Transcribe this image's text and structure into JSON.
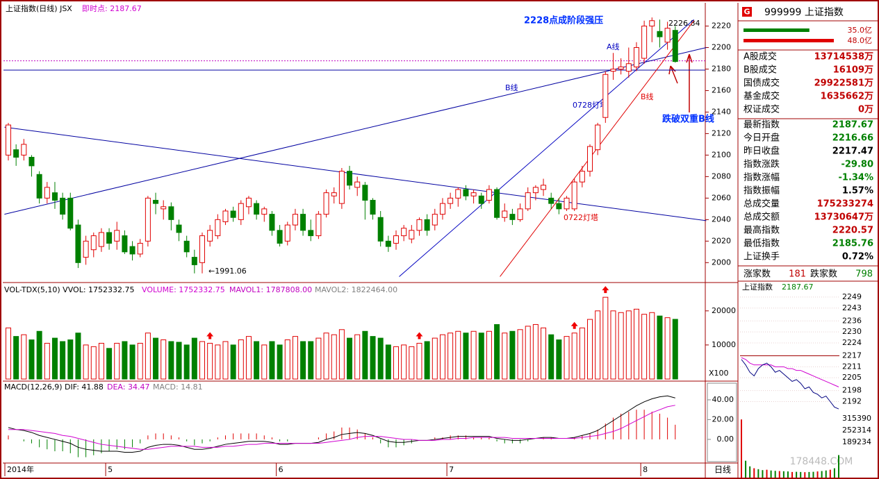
{
  "chart_data": {
    "type": "candlestick",
    "title": "上证指数(日线) JSX",
    "instant": "即时点: 2187.67",
    "ylim": [
      1986,
      2241
    ],
    "yticks": [
      2000,
      2020,
      2040,
      2060,
      2080,
      2100,
      2120,
      2140,
      2160,
      2180,
      2200,
      2220
    ],
    "xlabels": [
      {
        "index": 0,
        "label": "2014年"
      },
      {
        "index": 13,
        "label": "5"
      },
      {
        "index": 35,
        "label": "6"
      },
      {
        "index": 57,
        "label": "7"
      },
      {
        "index": 82,
        "label": "8"
      }
    ],
    "ohlc": [
      [
        2100,
        2128,
        2130,
        2095
      ],
      [
        2105,
        2098,
        2110,
        2090
      ],
      [
        2100,
        2110,
        2115,
        2095
      ],
      [
        2098,
        2090,
        2100,
        2080
      ],
      [
        2082,
        2060,
        2085,
        2055
      ],
      [
        2060,
        2070,
        2075,
        2055
      ],
      [
        2065,
        2058,
        2075,
        2050
      ],
      [
        2060,
        2045,
        2065,
        2040
      ],
      [
        2060,
        2032,
        2065,
        2030
      ],
      [
        2035,
        2000,
        2040,
        1995
      ],
      [
        2005,
        2020,
        2025,
        1998
      ],
      [
        2012,
        2025,
        2028,
        2005
      ],
      [
        2015,
        2028,
        2032,
        2010
      ],
      [
        2028,
        2018,
        2032,
        2012
      ],
      [
        2020,
        2030,
        2038,
        2012
      ],
      [
        2025,
        2010,
        2030,
        2008
      ],
      [
        2015,
        2008,
        2020,
        2002
      ],
      [
        2008,
        2018,
        2022,
        2005
      ],
      [
        2020,
        2060,
        2062,
        2015
      ],
      [
        2058,
        2055,
        2065,
        2045
      ],
      [
        2050,
        2052,
        2058,
        2040
      ],
      [
        2052,
        2040,
        2056,
        2030
      ],
      [
        2035,
        2028,
        2040,
        2020
      ],
      [
        2020,
        2010,
        2025,
        2005
      ],
      [
        2005,
        1998,
        2012,
        1990
      ],
      [
        2000,
        2025,
        2028,
        1990
      ],
      [
        2020,
        2030,
        2035,
        2015
      ],
      [
        2025,
        2040,
        2045,
        2022
      ],
      [
        2038,
        2048,
        2050,
        2035
      ],
      [
        2048,
        2042,
        2052,
        2038
      ],
      [
        2040,
        2055,
        2058,
        2035
      ],
      [
        2052,
        2060,
        2062,
        2045
      ],
      [
        2055,
        2045,
        2058,
        2040
      ],
      [
        2045,
        2050,
        2052,
        2038
      ],
      [
        2045,
        2030,
        2048,
        2025
      ],
      [
        2030,
        2018,
        2035,
        2015
      ],
      [
        2020,
        2035,
        2038,
        2016
      ],
      [
        2035,
        2045,
        2050,
        2030
      ],
      [
        2045,
        2030,
        2050,
        2025
      ],
      [
        2030,
        2025,
        2040,
        2020
      ],
      [
        2025,
        2045,
        2048,
        2022
      ],
      [
        2045,
        2065,
        2068,
        2042
      ],
      [
        2062,
        2065,
        2070,
        2055
      ],
      [
        2055,
        2085,
        2088,
        2050
      ],
      [
        2085,
        2072,
        2090,
        2068
      ],
      [
        2070,
        2075,
        2080,
        2062
      ],
      [
        2072,
        2058,
        2075,
        2040
      ],
      [
        2058,
        2045,
        2060,
        2040
      ],
      [
        2042,
        2020,
        2048,
        2015
      ],
      [
        2020,
        2015,
        2025,
        2010
      ],
      [
        2018,
        2025,
        2030,
        2012
      ],
      [
        2025,
        2032,
        2035,
        2020
      ],
      [
        2022,
        2030,
        2035,
        2018
      ],
      [
        2030,
        2040,
        2042,
        2025
      ],
      [
        2040,
        2030,
        2045,
        2025
      ],
      [
        2035,
        2045,
        2050,
        2030
      ],
      [
        2045,
        2055,
        2060,
        2040
      ],
      [
        2055,
        2060,
        2065,
        2050
      ],
      [
        2060,
        2068,
        2070,
        2052
      ],
      [
        2068,
        2062,
        2072,
        2058
      ],
      [
        2062,
        2065,
        2068,
        2055
      ],
      [
        2062,
        2055,
        2065,
        2050
      ],
      [
        2058,
        2068,
        2072,
        2055
      ],
      [
        2068,
        2042,
        2070,
        2040
      ],
      [
        2042,
        2048,
        2055,
        2038
      ],
      [
        2045,
        2040,
        2050,
        2035
      ],
      [
        2040,
        2050,
        2055,
        2038
      ],
      [
        2050,
        2065,
        2070,
        2048
      ],
      [
        2065,
        2070,
        2072,
        2058
      ],
      [
        2068,
        2072,
        2078,
        2062
      ],
      [
        2060,
        2055,
        2065,
        2050
      ],
      [
        2055,
        2050,
        2060,
        2045
      ],
      [
        2050,
        2060,
        2062,
        2048
      ],
      [
        2050,
        2075,
        2078,
        2048
      ],
      [
        2075,
        2085,
        2090,
        2070
      ],
      [
        2085,
        2108,
        2110,
        2080
      ],
      [
        2105,
        2128,
        2130,
        2100
      ],
      [
        2135,
        2175,
        2178,
        2130
      ],
      [
        2178,
        2180,
        2195,
        2170
      ],
      [
        2180,
        2182,
        2190,
        2175
      ],
      [
        2178,
        2185,
        2200,
        2172
      ],
      [
        2182,
        2200,
        2205,
        2178
      ],
      [
        2190,
        2220,
        2225,
        2185
      ],
      [
        2220,
        2225,
        2228,
        2205
      ],
      [
        2215,
        2210,
        2226,
        2200
      ],
      [
        2205,
        2218,
        2224,
        2198
      ],
      [
        2216,
        2187,
        2220,
        2186
      ]
    ],
    "lines": [
      {
        "from": [
          -0.5,
          2126
        ],
        "to": [
          90,
          2039
        ],
        "color": "#0000a0"
      },
      {
        "from": [
          -0.5,
          2045
        ],
        "to": [
          90,
          2200
        ],
        "color": "#0000a0"
      },
      {
        "from": [
          50.4,
          1987
        ],
        "to": [
          88.4,
          2226
        ],
        "color": "#0000c0"
      },
      {
        "from": [
          63.4,
          1987
        ],
        "to": [
          88.4,
          2225
        ],
        "color": "#e00000"
      }
    ],
    "hline": 2179,
    "instant_value": 2187.67,
    "annotations": {
      "pressure": "2228点成阶段强压",
      "a_line": "A线",
      "b_line_blue": "B线",
      "b_line_red": "B线",
      "tower1": "0728灯塔",
      "tower2": "0722灯塔",
      "break": "跌破双重B线",
      "high": "2226.84",
      "low": "←1991.06"
    },
    "volume": {
      "header": "VOL-TDX(5,10) VVOL: 1752332.75",
      "vol": "VOLUME: 1752332.75",
      "mavol1": "MAVOL1: 1787808.00",
      "mavol2": "MAVOL2: 1822464.00",
      "unit": "X100",
      "ylim": [
        0,
        27700
      ],
      "yticks": [
        10000,
        20000
      ],
      "values": [
        15000,
        12500,
        13000,
        11500,
        14000,
        10500,
        12000,
        11000,
        11500,
        13500,
        10000,
        9500,
        10500,
        9000,
        10500,
        11000,
        10000,
        10500,
        13500,
        12000,
        11500,
        11000,
        10800,
        10000,
        12000,
        11000,
        10500,
        10000,
        11000,
        10000,
        11500,
        12500,
        11000,
        10000,
        11000,
        10000,
        11500,
        12500,
        11000,
        11000,
        12000,
        13500,
        13000,
        14500,
        12000,
        13000,
        14000,
        12500,
        12000,
        10000,
        9500,
        10000,
        9500,
        10500,
        11000,
        12000,
        13000,
        13500,
        14000,
        13500,
        14000,
        13500,
        14000,
        16000,
        13500,
        14000,
        14500,
        15500,
        16000,
        15000,
        13000,
        11500,
        12500,
        13500,
        15000,
        17500,
        20000,
        24000,
        20000,
        19500,
        20000,
        20500,
        19000,
        19500,
        18500,
        18000,
        17523
      ],
      "arrows": [
        26,
        53,
        73,
        77
      ]
    },
    "macd": {
      "header": "MACD(12,26,9)",
      "dif_label": "DIF: 41.88",
      "dea_label": "DEA: 34.47",
      "macd_label": "MACD: 14.81",
      "ylim": [
        -22.5,
        56.8
      ],
      "yticks": [
        {
          "value": 0,
          "label": "0.00"
        },
        {
          "value": 20,
          "label": "20.00"
        },
        {
          "value": 40,
          "label": "40.00"
        }
      ],
      "dif": [
        12,
        10,
        9,
        7,
        4,
        2,
        0,
        -2,
        -4,
        -8,
        -10,
        -11,
        -12,
        -12,
        -12,
        -13,
        -13,
        -12,
        -8,
        -6,
        -5,
        -5,
        -6,
        -8,
        -10,
        -10,
        -9,
        -7,
        -5,
        -4,
        -3,
        -2,
        -2,
        -2,
        -3,
        -5,
        -5,
        -4,
        -4,
        -4,
        -3,
        0,
        2,
        5,
        6,
        7,
        6,
        4,
        1,
        -2,
        -3,
        -3,
        -2,
        -1,
        -1,
        0,
        1,
        2,
        3,
        3,
        3,
        3,
        3,
        1,
        0,
        -1,
        -1,
        0,
        1,
        2,
        2,
        1,
        1,
        2,
        4,
        6,
        9,
        14,
        19,
        24,
        29,
        34,
        38,
        41,
        43,
        44,
        41.88
      ],
      "dea": [
        10,
        10,
        10,
        9,
        8,
        7,
        6,
        4,
        3,
        1,
        -1,
        -3,
        -5,
        -6,
        -7,
        -8,
        -9,
        -10,
        -10,
        -9,
        -8,
        -7,
        -7,
        -7,
        -7,
        -8,
        -8,
        -8,
        -7,
        -7,
        -6,
        -5,
        -5,
        -4,
        -4,
        -4,
        -4,
        -4,
        -4,
        -4,
        -4,
        -3,
        -2,
        -1,
        0,
        2,
        3,
        3,
        3,
        2,
        1,
        0,
        0,
        -1,
        -1,
        -1,
        0,
        0,
        1,
        1,
        2,
        2,
        2,
        2,
        2,
        1,
        1,
        1,
        1,
        1,
        1,
        1,
        1,
        1,
        2,
        3,
        4,
        6,
        8,
        11,
        15,
        19,
        23,
        27,
        30,
        33,
        34.47
      ],
      "bars": [
        4,
        0,
        -2,
        -4,
        -8,
        -10,
        -12,
        -12,
        -14,
        -18,
        -18,
        -16,
        -14,
        -12,
        -10,
        -10,
        -8,
        -4,
        4,
        6,
        6,
        4,
        2,
        -2,
        -6,
        -4,
        -2,
        2,
        4,
        6,
        6,
        6,
        6,
        4,
        2,
        -2,
        -2,
        0,
        0,
        0,
        2,
        6,
        8,
        12,
        12,
        10,
        6,
        2,
        -4,
        -8,
        -8,
        -6,
        -4,
        0,
        0,
        2,
        2,
        4,
        4,
        4,
        2,
        2,
        2,
        -2,
        -4,
        -4,
        -4,
        -2,
        0,
        2,
        2,
        0,
        0,
        2,
        4,
        6,
        10,
        16,
        22,
        26,
        28,
        30,
        30,
        28,
        26,
        22,
        14.81
      ]
    },
    "period": "日线"
  },
  "panel": {
    "badge": "G",
    "code": "999999 上证指数",
    "buy": {
      "value": 35,
      "label": "35.0亿"
    },
    "sell": {
      "value": 48,
      "label": "48.0亿"
    },
    "rows": [
      [
        "A股成交",
        "13714538万",
        "#c00000"
      ],
      [
        "B股成交",
        "16109万",
        "#c00000"
      ],
      [
        "国债成交",
        "29922581万",
        "#c00000"
      ],
      [
        "基金成交",
        "1635662万",
        "#c00000"
      ],
      [
        "权证成交",
        "0万",
        "#c00000"
      ],
      [
        "最新指数",
        "2187.67",
        "#008000"
      ],
      [
        "今日开盘",
        "2216.66",
        "#008000"
      ],
      [
        "昨日收盘",
        "2217.47",
        "#000000"
      ],
      [
        "指数涨跌",
        "-29.80",
        "#008000"
      ],
      [
        "指数涨幅",
        "-1.34%",
        "#008000"
      ],
      [
        "指数振幅",
        "1.57%",
        "#000000"
      ],
      [
        "总成交量",
        "175233274",
        "#c00000"
      ],
      [
        "总成交额",
        "13730647万",
        "#c00000"
      ],
      [
        "最高指数",
        "2220.57",
        "#c00000"
      ],
      [
        "最低指数",
        "2185.76",
        "#008000"
      ],
      [
        "上证换手",
        "0.72%",
        "#000000"
      ]
    ],
    "up_label": "涨家数",
    "up": "181",
    "down_label": "跌家数",
    "down": "798"
  },
  "intraday": {
    "title": "上证指数",
    "last": "2187.67",
    "prev_close": 2217,
    "ylim": [
      2185,
      2252
    ],
    "yticks": [
      2249,
      2243,
      2236,
      2230,
      2224,
      2217,
      2211,
      2205,
      2198,
      2192
    ],
    "price": [
      2215,
      2212,
      2208,
      2206,
      2210,
      2212,
      2213,
      2211,
      2208,
      2209,
      2207,
      2205,
      2203,
      2204,
      2202,
      2199,
      2200,
      2197,
      2196,
      2194,
      2195,
      2192,
      2189,
      2188
    ],
    "avg": [
      2216,
      2215,
      2213,
      2212,
      2212,
      2212,
      2212,
      2212,
      2211,
      2211,
      2211,
      2210,
      2210,
      2209,
      2209,
      2208,
      2207,
      2206,
      2205,
      2204,
      2203,
      2202,
      2201,
      2200
    ],
    "vlim": [
      0,
      333000
    ],
    "vticks": [
      315390,
      252314,
      189234
    ],
    "volume": [
      310000,
      90000,
      60000,
      50000,
      45000,
      40000,
      42000,
      38000,
      36000,
      35000,
      34000,
      33000,
      30000,
      31000,
      30000,
      29000,
      30000,
      31000,
      33000,
      35000,
      38000,
      42000,
      50000,
      120000
    ]
  },
  "watermark": "178448.COM"
}
